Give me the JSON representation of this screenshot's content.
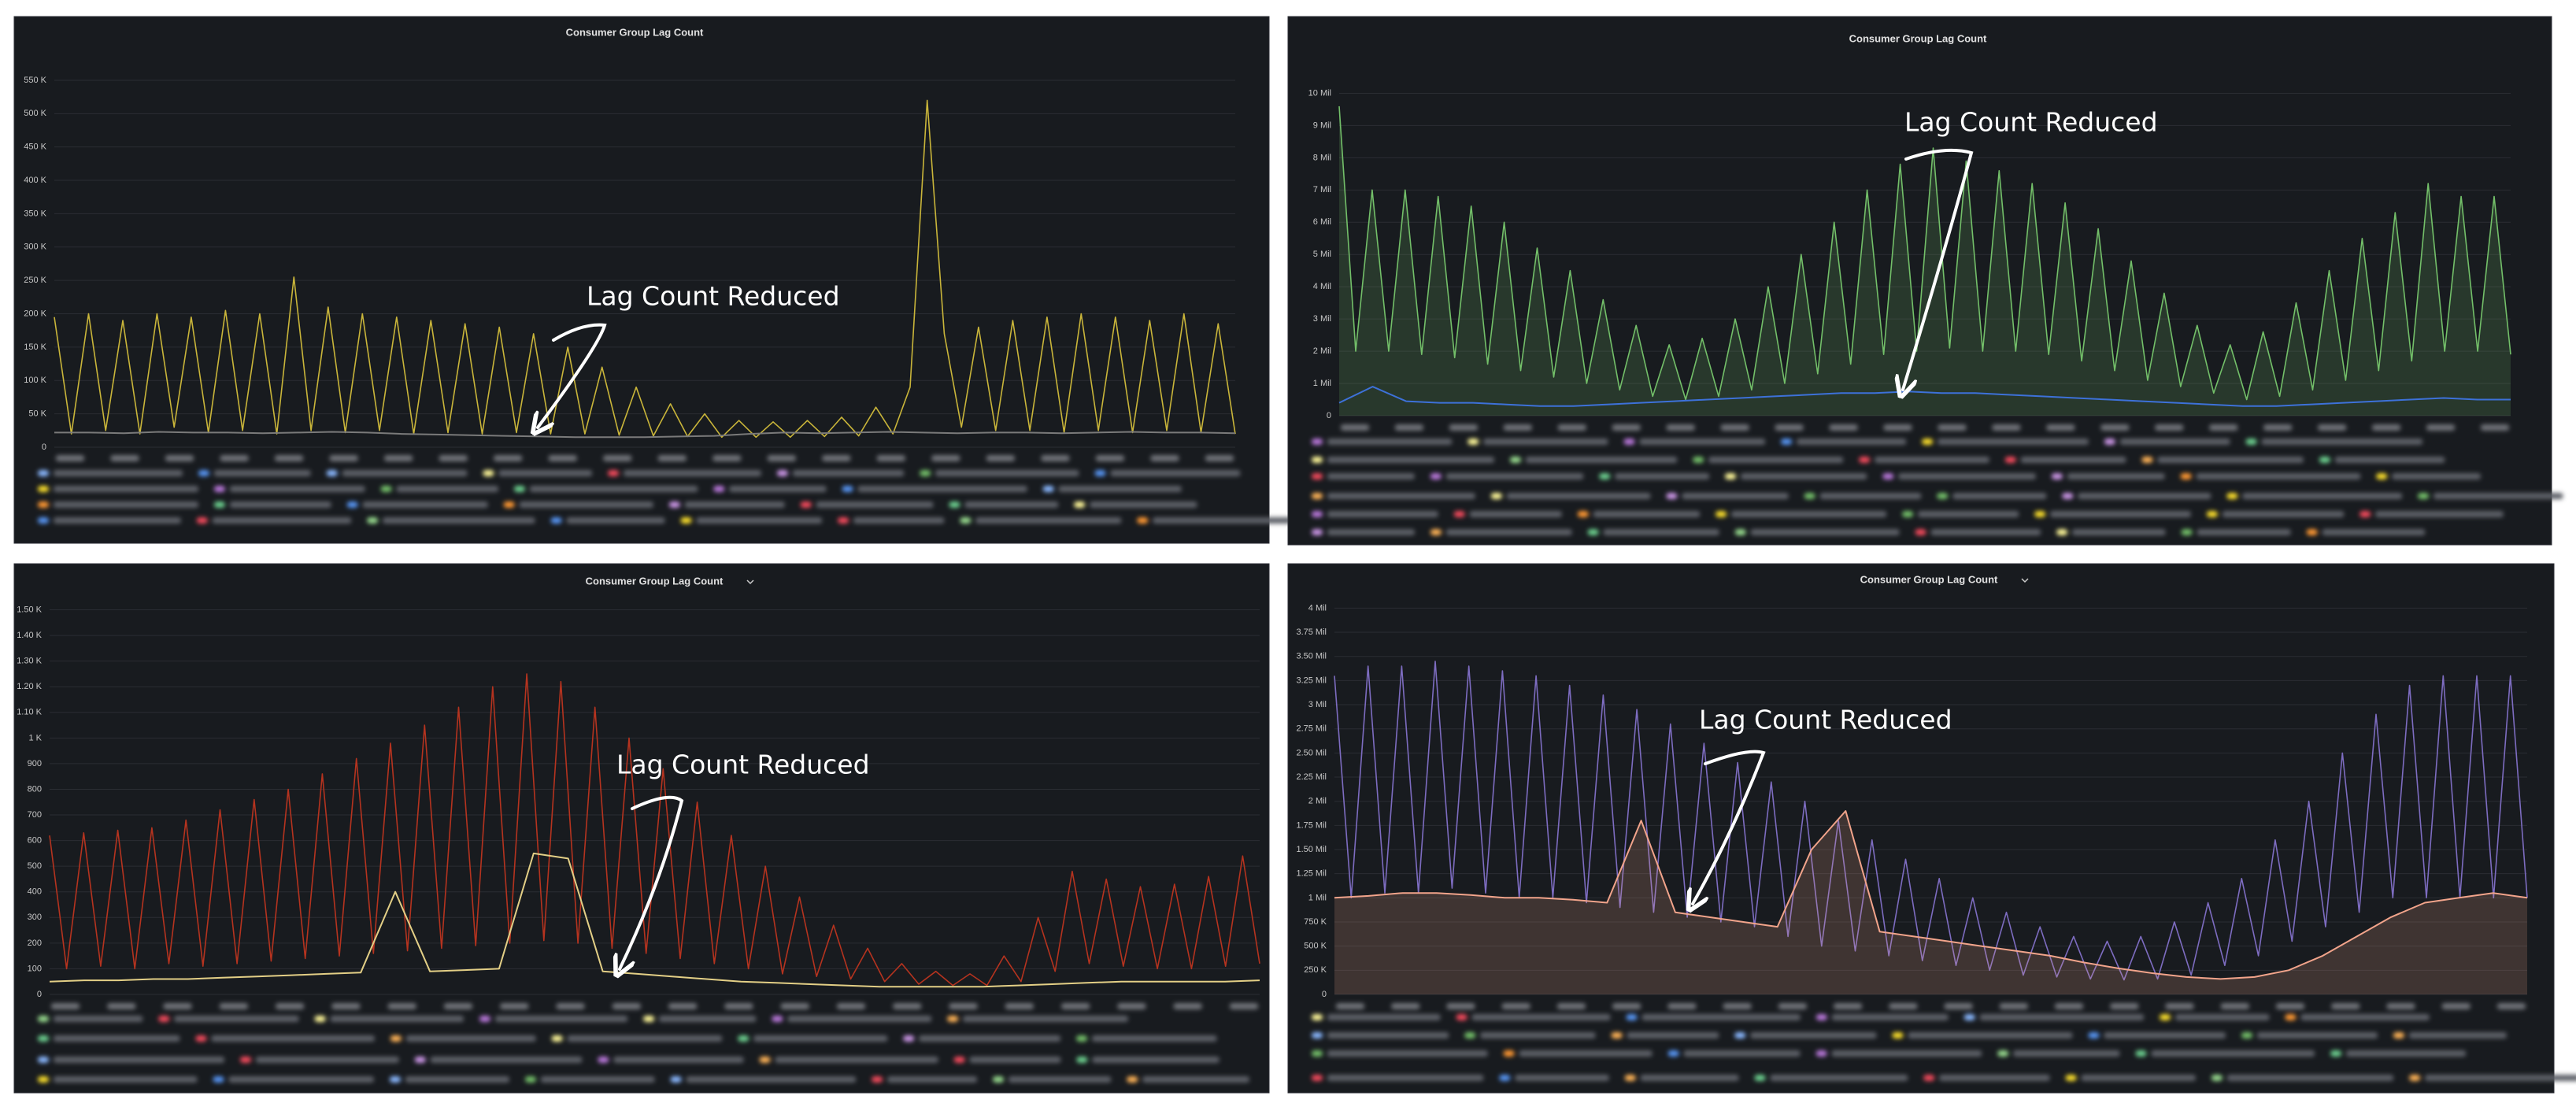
{
  "chart_data": [
    {
      "type": "line",
      "title": "Consumer Group Lag Count",
      "annotation": "Lag Count Reduced",
      "ylim": [
        0,
        570000
      ],
      "yticks": [
        0,
        {
          "value": 50000,
          "label": "50 K"
        },
        {
          "value": 100000,
          "label": "100 K"
        },
        {
          "value": 150000,
          "label": "150 K"
        },
        {
          "value": 200000,
          "label": "200 K"
        },
        {
          "value": 250000,
          "label": "250 K"
        },
        {
          "value": 300000,
          "label": "300 K"
        },
        {
          "value": 350000,
          "label": "350 K"
        },
        {
          "value": 400000,
          "label": "400 K"
        },
        {
          "value": 450000,
          "label": "450 K"
        },
        {
          "value": 500000,
          "label": "500 K"
        },
        {
          "value": 550000,
          "label": "550 K"
        }
      ],
      "grid": true,
      "series": [
        {
          "color": "#c9b53a",
          "fill": false,
          "values": [
            195000,
            20000,
            200000,
            25000,
            190000,
            20000,
            200000,
            30000,
            195000,
            22000,
            205000,
            25000,
            200000,
            20000,
            255000,
            25000,
            210000,
            22000,
            200000,
            25000,
            195000,
            20000,
            190000,
            22000,
            185000,
            20000,
            180000,
            22000,
            170000,
            20000,
            150000,
            20000,
            120000,
            18000,
            90000,
            17000,
            65000,
            16000,
            50000,
            15000,
            40000,
            15000,
            38000,
            15000,
            40000,
            16000,
            45000,
            17000,
            60000,
            20000,
            90000,
            520000,
            170000,
            30000,
            180000,
            25000,
            190000,
            25000,
            195000,
            22000,
            200000,
            25000,
            195000,
            22000,
            190000,
            25000,
            200000,
            22000,
            185000,
            20000
          ]
        },
        {
          "color": "#7a7a7a",
          "fill": false,
          "values": [
            22000,
            22000,
            21000,
            23000,
            22000,
            22000,
            21000,
            22000,
            23000,
            22000,
            20000,
            19000,
            18000,
            17000,
            16000,
            15000,
            15000,
            15000,
            16000,
            17000,
            20000,
            22000,
            21000,
            22000,
            23000,
            22000,
            21000,
            22000,
            22000,
            21000,
            22000,
            23000,
            22000,
            22000,
            21000
          ]
        }
      ]
    },
    {
      "type": "line",
      "title": "Consumer Group Lag Count",
      "annotation": "Lag Count Reduced",
      "ylim": [
        0,
        10500000
      ],
      "yticks": [
        0,
        {
          "value": 1000000,
          "label": "1 Mil"
        },
        {
          "value": 2000000,
          "label": "2 Mil"
        },
        {
          "value": 3000000,
          "label": "3 Mil"
        },
        {
          "value": 4000000,
          "label": "4 Mil"
        },
        {
          "value": 5000000,
          "label": "5 Mil"
        },
        {
          "value": 6000000,
          "label": "6 Mil"
        },
        {
          "value": 7000000,
          "label": "7 Mil"
        },
        {
          "value": 8000000,
          "label": "8 Mil"
        },
        {
          "value": 9000000,
          "label": "9 Mil"
        },
        {
          "value": 10000000,
          "label": "10 Mil"
        }
      ],
      "grid": true,
      "series": [
        {
          "color": "#73bf69",
          "fill": true,
          "values": [
            9600000,
            2000000,
            7000000,
            2000000,
            7000000,
            1900000,
            6800000,
            1800000,
            6500000,
            1600000,
            6000000,
            1400000,
            5200000,
            1200000,
            4500000,
            1000000,
            3600000,
            800000,
            2800000,
            600000,
            2200000,
            500000,
            2400000,
            600000,
            3000000,
            800000,
            4000000,
            1000000,
            5000000,
            1300000,
            6000000,
            1600000,
            7000000,
            1900000,
            7800000,
            2000000,
            8300000,
            2100000,
            7900000,
            2000000,
            7600000,
            2000000,
            7200000,
            1900000,
            6600000,
            1700000,
            5800000,
            1400000,
            4800000,
            1100000,
            3800000,
            900000,
            2800000,
            700000,
            2200000,
            500000,
            2600000,
            600000,
            3500000,
            800000,
            4500000,
            1100000,
            5500000,
            1400000,
            6300000,
            1700000,
            7200000,
            2000000,
            6800000,
            2000000,
            6800000,
            1900000
          ]
        },
        {
          "color": "#3d71d9",
          "fill": false,
          "values": [
            400000,
            900000,
            450000,
            400000,
            400000,
            350000,
            300000,
            300000,
            350000,
            400000,
            450000,
            500000,
            550000,
            600000,
            650000,
            700000,
            700000,
            750000,
            700000,
            700000,
            650000,
            600000,
            550000,
            500000,
            450000,
            400000,
            350000,
            300000,
            300000,
            350000,
            400000,
            450000,
            500000,
            550000,
            500000,
            500000
          ]
        }
      ]
    },
    {
      "type": "line",
      "title": "Consumer Group Lag Count",
      "annotation": "Lag Count Reduced",
      "ylim": [
        0,
        1560
      ],
      "yticks": [
        0,
        100,
        200,
        300,
        400,
        500,
        600,
        700,
        800,
        900,
        {
          "value": 1000,
          "label": "1 K"
        },
        {
          "value": 1100,
          "label": "1.10 K"
        },
        {
          "value": 1200,
          "label": "1.20 K"
        },
        {
          "value": 1300,
          "label": "1.30 K"
        },
        {
          "value": 1400,
          "label": "1.40 K"
        },
        {
          "value": 1500,
          "label": "1.50 K"
        }
      ],
      "grid": true,
      "series": [
        {
          "color": "#b5331f",
          "fill": false,
          "values": [
            620,
            100,
            630,
            110,
            640,
            100,
            650,
            120,
            680,
            110,
            720,
            120,
            760,
            130,
            800,
            140,
            860,
            150,
            920,
            160,
            980,
            170,
            1050,
            180,
            1120,
            190,
            1200,
            200,
            1250,
            210,
            1220,
            200,
            1120,
            180,
            1000,
            160,
            880,
            140,
            750,
            120,
            620,
            100,
            500,
            80,
            380,
            70,
            270,
            60,
            180,
            50,
            120,
            40,
            90,
            35,
            80,
            35,
            150,
            50,
            300,
            90,
            480,
            120,
            450,
            110,
            420,
            100,
            430,
            100,
            460,
            110,
            540,
            120
          ]
        },
        {
          "color": "#e3cf86",
          "fill": false,
          "values": [
            50,
            55,
            55,
            60,
            60,
            65,
            70,
            75,
            80,
            85,
            400,
            90,
            95,
            100,
            550,
            530,
            90,
            80,
            70,
            60,
            50,
            45,
            40,
            35,
            30,
            30,
            30,
            30,
            35,
            40,
            45,
            50,
            50,
            50,
            50,
            55
          ]
        }
      ]
    },
    {
      "type": "line",
      "title": "Consumer Group Lag Count",
      "annotation": "Lag Count Reduced",
      "ylim": [
        0,
        4150000
      ],
      "yticks": [
        0,
        {
          "value": 250000,
          "label": "250 K"
        },
        {
          "value": 500000,
          "label": "500 K"
        },
        {
          "value": 750000,
          "label": "750 K"
        },
        {
          "value": 1000000,
          "label": "1 Mil"
        },
        {
          "value": 1250000,
          "label": "1.25 Mil"
        },
        {
          "value": 1500000,
          "label": "1.50 Mil"
        },
        {
          "value": 1750000,
          "label": "1.75 Mil"
        },
        {
          "value": 2000000,
          "label": "2 Mil"
        },
        {
          "value": 2250000,
          "label": "2.25 Mil"
        },
        {
          "value": 2500000,
          "label": "2.50 Mil"
        },
        {
          "value": 2750000,
          "label": "2.75 Mil"
        },
        {
          "value": 3000000,
          "label": "3 Mil"
        },
        {
          "value": 3250000,
          "label": "3.25 Mil"
        },
        {
          "value": 3500000,
          "label": "3.50 Mil"
        },
        {
          "value": 3750000,
          "label": "3.75 Mil"
        },
        {
          "value": 4000000,
          "label": "4 Mil"
        }
      ],
      "grid": true,
      "series": [
        {
          "color": "#7d6cc0",
          "fill": false,
          "values": [
            3300000,
            1000000,
            3400000,
            1050000,
            3400000,
            1050000,
            3450000,
            1100000,
            3400000,
            1050000,
            3350000,
            1000000,
            3300000,
            1000000,
            3200000,
            950000,
            3100000,
            900000,
            2950000,
            850000,
            2800000,
            800000,
            2600000,
            750000,
            2400000,
            700000,
            2200000,
            600000,
            2000000,
            500000,
            1800000,
            450000,
            1600000,
            400000,
            1400000,
            350000,
            1200000,
            300000,
            1000000,
            250000,
            850000,
            200000,
            700000,
            180000,
            600000,
            160000,
            550000,
            150000,
            600000,
            160000,
            750000,
            200000,
            950000,
            300000,
            1200000,
            400000,
            1600000,
            550000,
            2000000,
            700000,
            2500000,
            850000,
            2900000,
            1000000,
            3200000,
            1000000,
            3300000,
            1000000,
            3300000,
            1000000,
            3300000,
            1000000
          ]
        },
        {
          "color": "#f2a48b",
          "fill": true,
          "values": [
            1000000,
            1020000,
            1050000,
            1050000,
            1030000,
            1000000,
            1000000,
            980000,
            950000,
            1800000,
            850000,
            800000,
            750000,
            700000,
            1500000,
            1900000,
            650000,
            600000,
            550000,
            500000,
            450000,
            400000,
            330000,
            270000,
            220000,
            180000,
            160000,
            180000,
            250000,
            400000,
            600000,
            800000,
            950000,
            1000000,
            1050000,
            1000000
          ]
        }
      ]
    }
  ]
}
